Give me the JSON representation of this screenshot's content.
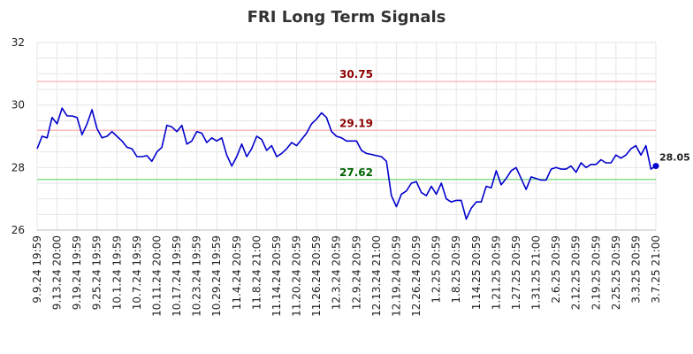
{
  "chart_data": {
    "type": "line",
    "title": "FRI Long Term Signals",
    "xlabel": "",
    "ylabel": "",
    "ylim": [
      26,
      32
    ],
    "y_ticks": [
      26,
      28,
      30,
      32
    ],
    "x_tick_labels": [
      "9.9.24 19:59",
      "9.13.24 20:00",
      "9.19.24 19:59",
      "9.25.24 19:59",
      "10.1.24 19:59",
      "10.7.24 19:59",
      "10.11.24 20:00",
      "10.17.24 19:59",
      "10.23.24 19:59",
      "10.29.24 19:59",
      "11.4.24 20:59",
      "11.8.24 21:00",
      "11.14.24 20:59",
      "11.20.24 20:59",
      "11.26.24 20:59",
      "12.3.24 20:59",
      "12.9.24 20:59",
      "12.13.24 21:00",
      "12.19.24 20:59",
      "12.26.24 20:59",
      "1.2.25 20:59",
      "1.8.25 20:59",
      "1.14.25 20:59",
      "1.21.25 20:59",
      "1.27.25 20:59",
      "1.31.25 21:00",
      "2.6.25 20:59",
      "2.12.25 20:59",
      "2.19.25 20:59",
      "2.25.25 20:59",
      "3.3.25 20:59",
      "3.7.25 21:00"
    ],
    "grid": true,
    "series": [
      {
        "color": "#0000cc",
        "values": [
          28.6,
          29.0,
          28.95,
          29.6,
          29.4,
          29.9,
          29.65,
          29.65,
          29.6,
          29.05,
          29.4,
          29.85,
          29.25,
          28.95,
          29.0,
          29.15,
          29.0,
          28.85,
          28.65,
          28.6,
          28.35,
          28.35,
          28.38,
          28.2,
          28.5,
          28.65,
          29.35,
          29.3,
          29.15,
          29.35,
          28.75,
          28.85,
          29.15,
          29.1,
          28.8,
          28.95,
          28.85,
          28.95,
          28.4,
          28.05,
          28.35,
          28.75,
          28.35,
          28.6,
          29.0,
          28.9,
          28.55,
          28.7,
          28.35,
          28.45,
          28.6,
          28.8,
          28.7,
          28.9,
          29.1,
          29.4,
          29.55,
          29.75,
          29.6,
          29.15,
          29.0,
          28.95,
          28.85,
          28.85,
          28.85,
          28.55,
          28.45,
          28.42,
          28.38,
          28.35,
          28.2,
          27.1,
          26.75,
          27.15,
          27.25,
          27.5,
          27.55,
          27.2,
          27.1,
          27.4,
          27.15,
          27.5,
          27.0,
          26.9,
          26.95,
          26.95,
          26.35,
          26.7,
          26.9,
          26.9,
          27.4,
          27.35,
          27.9,
          27.45,
          27.65,
          27.9,
          28.0,
          27.65,
          27.3,
          27.7,
          27.65,
          27.6,
          27.6,
          27.95,
          28.0,
          27.95,
          27.95,
          28.05,
          27.85,
          28.15,
          28.0,
          28.1,
          28.1,
          28.25,
          28.15,
          28.15,
          28.4,
          28.3,
          28.4,
          28.6,
          28.7,
          28.4,
          28.7,
          27.95,
          28.05
        ]
      }
    ],
    "reference_lines": [
      {
        "value": 30.75,
        "label": "30.75",
        "line_color": "#ffbbbb",
        "label_color": "#8b0000"
      },
      {
        "value": 29.19,
        "label": "29.19",
        "line_color": "#ffbbbb",
        "label_color": "#8b0000"
      },
      {
        "value": 27.62,
        "label": "27.62",
        "line_color": "#88dd88",
        "label_color": "#006400"
      }
    ],
    "last_value": {
      "value": 28.05,
      "label": "28.05"
    }
  }
}
